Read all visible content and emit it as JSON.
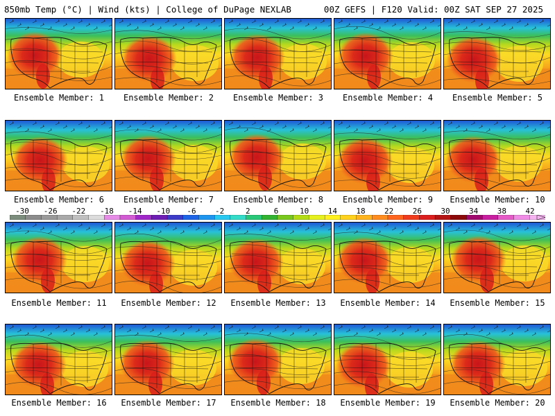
{
  "header": {
    "left": "850mb Temp (°C) | Wind (kts) | College of DuPage NEXLAB",
    "right": "00Z GEFS | F120 Valid: 00Z SAT SEP 27 2025"
  },
  "members": [
    "Ensemble Member: 1",
    "Ensemble Member: 2",
    "Ensemble Member: 3",
    "Ensemble Member: 4",
    "Ensemble Member: 5",
    "Ensemble Member: 6",
    "Ensemble Member: 7",
    "Ensemble Member: 8",
    "Ensemble Member: 9",
    "Ensemble Member: 10",
    "Ensemble Member: 11",
    "Ensemble Member: 12",
    "Ensemble Member: 13",
    "Ensemble Member: 14",
    "Ensemble Member: 15",
    "Ensemble Member: 16",
    "Ensemble Member: 17",
    "Ensemble Member: 18",
    "Ensemble Member: 19",
    "Ensemble Member: 20"
  ],
  "colorbar": {
    "ticks": [
      "-30",
      "-26",
      "-22",
      "-18",
      "-14",
      "-10",
      "-6",
      "-2",
      "2",
      "6",
      "10",
      "14",
      "18",
      "22",
      "26",
      "30",
      "34",
      "38",
      "42"
    ],
    "colors": [
      "#7d8d7d",
      "#8c8c8c",
      "#9a9a9a",
      "#a9a9a9",
      "#c0c0c0",
      "#dcdcdc",
      "#e68ce6",
      "#d25ad2",
      "#a028c8",
      "#6e1eb4",
      "#3c3cc8",
      "#1e64e6",
      "#1e96f0",
      "#28c8f0",
      "#32dcc8",
      "#28c878",
      "#32b432",
      "#78c81e",
      "#b4dc14",
      "#e6f01e",
      "#fff01e",
      "#ffd21e",
      "#ffb41e",
      "#ff8c1e",
      "#ff641e",
      "#f03c1e",
      "#dc1e1e",
      "#b41414",
      "#8c0a0a",
      "#a00a6e",
      "#c81ea0",
      "#e65ac8",
      "#f08ce6",
      "#f5b4f0"
    ]
  }
}
